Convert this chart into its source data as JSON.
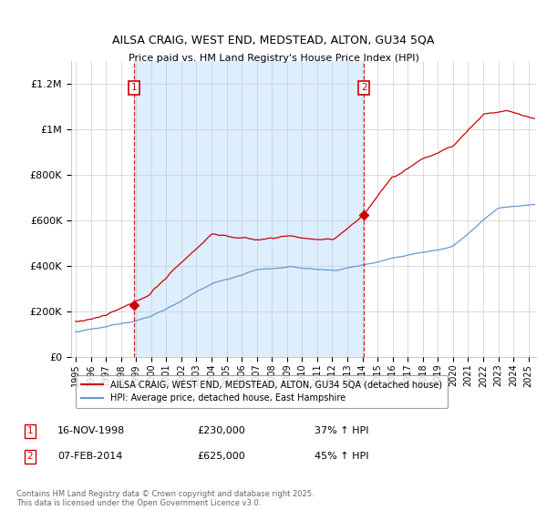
{
  "title": "AILSA CRAIG, WEST END, MEDSTEAD, ALTON, GU34 5QA",
  "subtitle": "Price paid vs. HM Land Registry's House Price Index (HPI)",
  "legend_label_red": "AILSA CRAIG, WEST END, MEDSTEAD, ALTON, GU34 5QA (detached house)",
  "legend_label_blue": "HPI: Average price, detached house, East Hampshire",
  "annotation1_label": "1",
  "annotation1_date": "16-NOV-1998",
  "annotation1_price": "£230,000",
  "annotation1_hpi": "37% ↑ HPI",
  "annotation2_label": "2",
  "annotation2_date": "07-FEB-2014",
  "annotation2_price": "£625,000",
  "annotation2_hpi": "45% ↑ HPI",
  "footer": "Contains HM Land Registry data © Crown copyright and database right 2025.\nThis data is licensed under the Open Government Licence v3.0.",
  "ylim": [
    0,
    1300000
  ],
  "yticks": [
    0,
    200000,
    400000,
    600000,
    800000,
    1000000,
    1200000
  ],
  "ytick_labels": [
    "£0",
    "£200K",
    "£400K",
    "£600K",
    "£800K",
    "£1M",
    "£1.2M"
  ],
  "vline1_x": 1998.88,
  "vline2_x": 2014.1,
  "marker1_x": 1998.88,
  "marker1_y": 230000,
  "marker2_x": 2014.1,
  "marker2_y": 625000,
  "red_color": "#cc0000",
  "blue_color": "#6699cc",
  "shade_color": "#ddeeff",
  "vline_color": "#cc0000",
  "background_color": "#ffffff",
  "grid_color": "#cccccc",
  "annotation_box_color": "#cc0000",
  "xlim_left": 1994.7,
  "xlim_right": 2025.5
}
